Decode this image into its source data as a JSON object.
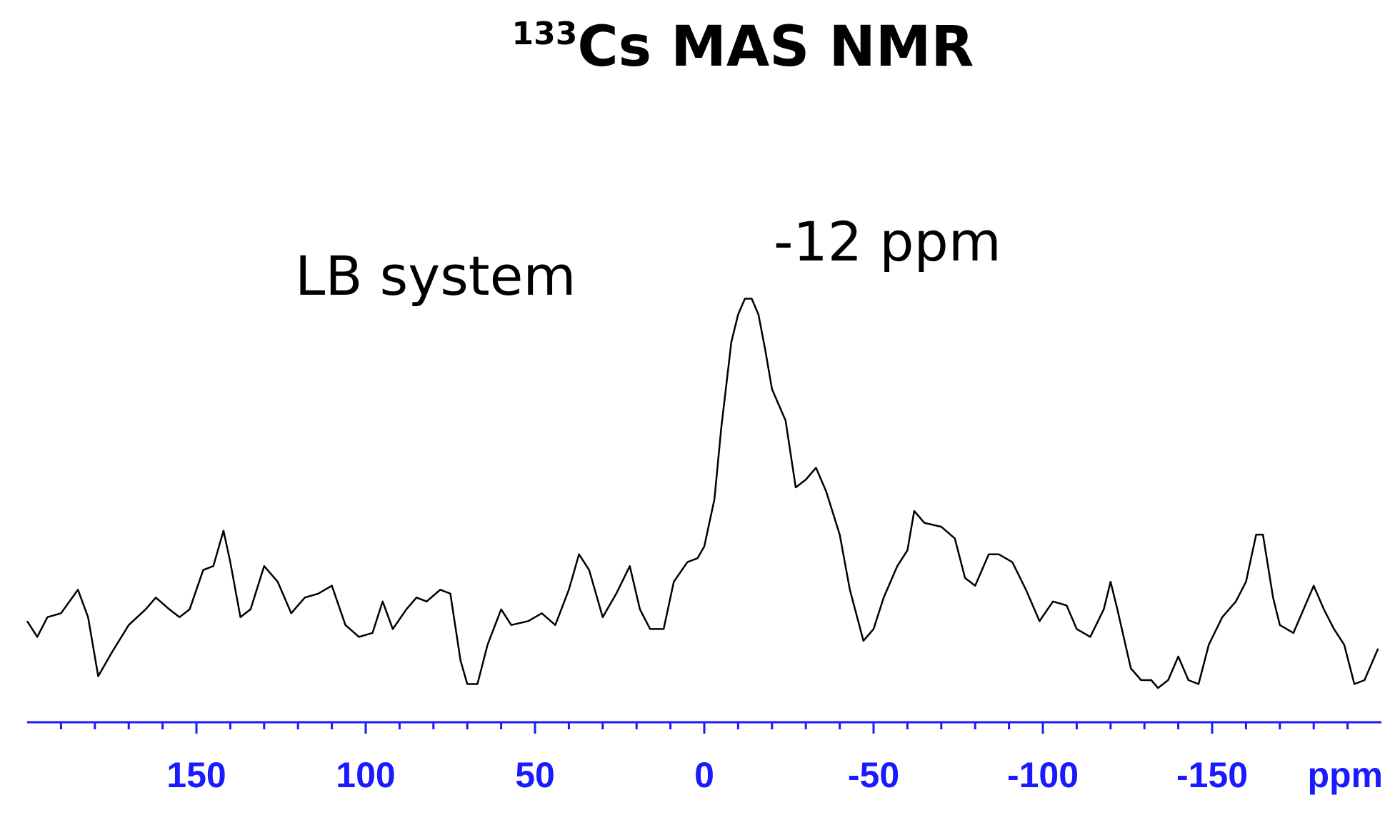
{
  "chart_data": {
    "type": "line",
    "title_superscript": "133",
    "title": "Cs MAS NMR",
    "annotations": [
      "LB system",
      "-12 ppm"
    ],
    "xlabel": "ppm",
    "xlim": [
      200,
      -200
    ],
    "xticks": [
      150,
      100,
      50,
      0,
      -50,
      -100,
      -150
    ],
    "xticks_minor": [
      190,
      180,
      170,
      160,
      140,
      130,
      120,
      110,
      90,
      80,
      70,
      60,
      40,
      30,
      20,
      10,
      -10,
      -20,
      -30,
      -40,
      -60,
      -70,
      -80,
      -90,
      -110,
      -120,
      -130,
      -140,
      -160,
      -170,
      -180,
      -190
    ],
    "ylim": [
      0,
      100
    ],
    "axis_color": "#1a1aff",
    "series": [
      {
        "color": "#000000",
        "x": [
          200,
          197,
          194,
          190,
          185,
          182,
          179,
          175,
          170,
          165,
          162,
          158,
          155,
          152,
          148,
          145,
          142,
          140,
          137,
          134,
          130,
          126,
          122,
          118,
          114,
          110,
          106,
          102,
          98,
          95,
          92,
          88,
          85,
          82,
          78,
          75,
          72,
          70,
          67,
          64,
          60,
          57,
          52,
          48,
          44,
          40,
          37,
          34,
          30,
          26,
          22,
          19,
          16,
          12,
          9,
          5,
          2,
          0,
          -3,
          -5,
          -8,
          -10,
          -12,
          -14,
          -16,
          -18,
          -20,
          -24,
          -27,
          -30,
          -33,
          -36,
          -40,
          -43,
          -47,
          -50,
          -53,
          -57,
          -60,
          -62,
          -65,
          -70,
          -74,
          -77,
          -80,
          -84,
          -87,
          -91,
          -95,
          -99,
          -103,
          -107,
          -110,
          -114,
          -118,
          -120,
          -122,
          -126,
          -129,
          -132,
          -134,
          -137,
          -140,
          -143,
          -146,
          -149,
          -153,
          -157,
          -160,
          -163,
          -165,
          -168,
          -170,
          -174,
          -177,
          -180,
          -183,
          -186,
          -189,
          -192,
          -195,
          -199
        ],
        "values": [
          17,
          13,
          18,
          19,
          25,
          18,
          3,
          9,
          16,
          20,
          23,
          20,
          18,
          20,
          30,
          31,
          40,
          32,
          18,
          20,
          31,
          27,
          19,
          23,
          24,
          26,
          16,
          13,
          14,
          22,
          15,
          20,
          23,
          22,
          25,
          24,
          7,
          1,
          1,
          11,
          20,
          16,
          17,
          19,
          16,
          25,
          34,
          30,
          18,
          24,
          31,
          20,
          15,
          15,
          27,
          32,
          33,
          36,
          48,
          66,
          88,
          95,
          99,
          99,
          95,
          86,
          76,
          68,
          51,
          53,
          56,
          50,
          39,
          25,
          12,
          15,
          23,
          31,
          35,
          45,
          42,
          41,
          38,
          28,
          26,
          34,
          34,
          32,
          25,
          17,
          22,
          21,
          15,
          13,
          20,
          27,
          20,
          5,
          2,
          2,
          0,
          2,
          8,
          2,
          1,
          11,
          18,
          22,
          27,
          39,
          39,
          23,
          16,
          14,
          20,
          26,
          20,
          15,
          11,
          1,
          2,
          10
        ]
      }
    ]
  }
}
